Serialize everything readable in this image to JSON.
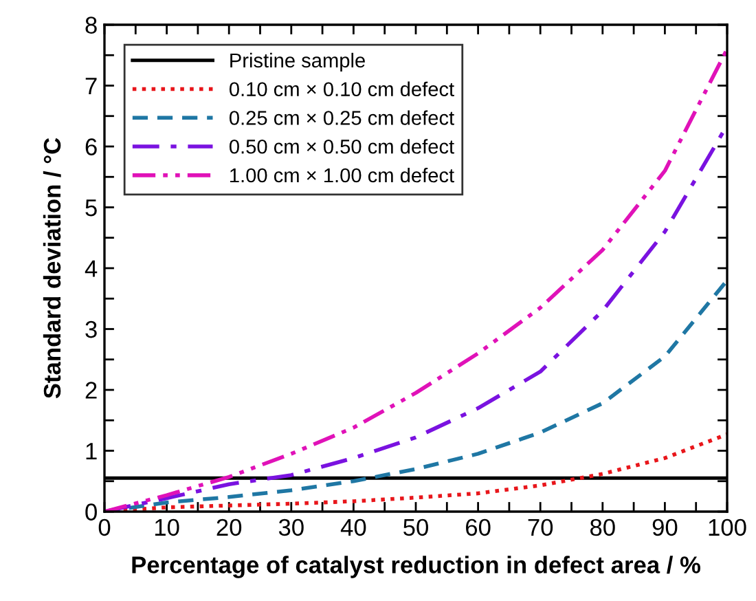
{
  "chart_data": {
    "type": "line",
    "xlabel": "Percentage of catalyst reduction in defect area / %",
    "ylabel": "Standard deviation / °C",
    "x": [
      0,
      10,
      20,
      30,
      40,
      50,
      60,
      70,
      80,
      90,
      100
    ],
    "series": [
      {
        "name": "Pristine sample",
        "color": "#000000",
        "line_style": "solid",
        "x": [
          0,
          100
        ],
        "values": [
          0.55,
          0.55
        ]
      },
      {
        "name": "0.10 cm × 0.10 cm defect",
        "color": "#e8161b",
        "line_style": "dotted",
        "values": [
          0,
          0.07,
          0.1,
          0.13,
          0.17,
          0.23,
          0.3,
          0.43,
          0.62,
          0.88,
          1.27
        ]
      },
      {
        "name": "0.25 cm × 0.25 cm defect",
        "color": "#1f77a4",
        "line_style": "dashed",
        "values": [
          0,
          0.15,
          0.24,
          0.35,
          0.5,
          0.7,
          0.95,
          1.3,
          1.78,
          2.55,
          3.8
        ]
      },
      {
        "name": "0.50 cm × 0.50 cm defect",
        "color": "#7a12e0",
        "line_style": "dashdot",
        "values": [
          0,
          0.22,
          0.45,
          0.6,
          0.88,
          1.22,
          1.7,
          2.3,
          3.3,
          4.6,
          6.35
        ]
      },
      {
        "name": "1.00 cm × 1.00 cm defect",
        "color": "#e012b8",
        "line_style": "dashdotdot",
        "values": [
          0,
          0.27,
          0.57,
          0.95,
          1.38,
          1.95,
          2.6,
          3.35,
          4.3,
          5.6,
          7.6
        ]
      }
    ],
    "xlim": [
      0,
      100
    ],
    "ylim": [
      0,
      8
    ],
    "xticks": [
      0,
      {
        "value": 5,
        "label": null
      },
      10,
      {
        "value": 15,
        "label": null
      },
      20,
      {
        "value": 25,
        "label": null
      },
      30,
      {
        "value": 35,
        "label": null
      },
      40,
      {
        "value": 45,
        "label": null
      },
      50,
      {
        "value": 55,
        "label": null
      },
      60,
      {
        "value": 65,
        "label": null
      },
      70,
      {
        "value": 75,
        "label": null
      },
      80,
      {
        "value": 85,
        "label": null
      },
      90,
      {
        "value": 95,
        "label": null
      },
      100
    ],
    "yticks": [
      0,
      {
        "value": 0.5,
        "label": null
      },
      1,
      {
        "value": 1.5,
        "label": null
      },
      2,
      {
        "value": 2.5,
        "label": null
      },
      3,
      {
        "value": 3.5,
        "label": null
      },
      4,
      {
        "value": 4.5,
        "label": null
      },
      5,
      {
        "value": 5.5,
        "label": null
      },
      6,
      {
        "value": 6.5,
        "label": null
      },
      7,
      {
        "value": 7.5,
        "label": null
      },
      8
    ],
    "legend": "top left",
    "grid": false
  }
}
